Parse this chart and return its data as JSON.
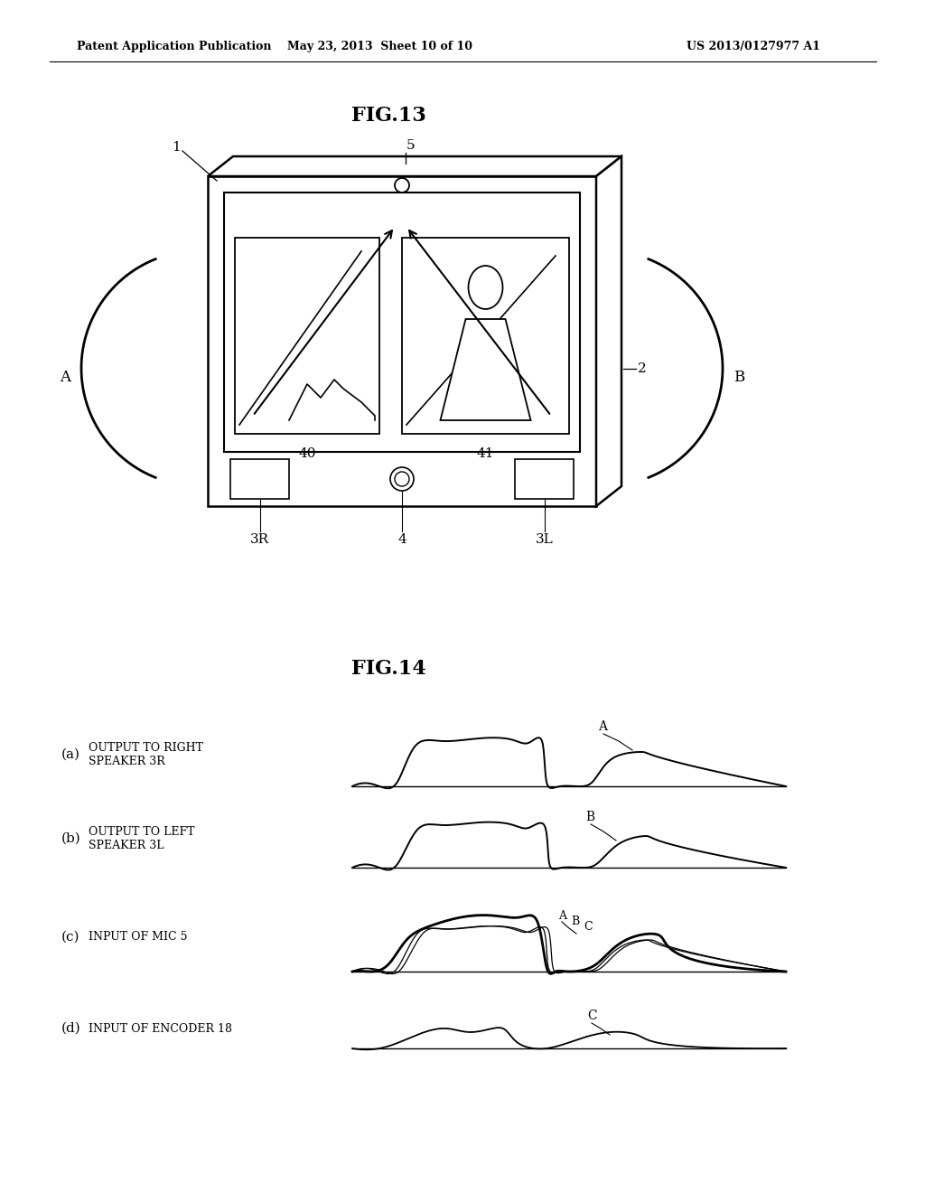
{
  "background_color": "#ffffff",
  "header_left": "Patent Application Publication",
  "header_center": "May 23, 2013  Sheet 10 of 10",
  "header_right": "US 2013/0127977 A1",
  "fig13_title": "FIG.13",
  "fig14_title": "FIG.14",
  "label_1": "1",
  "label_2": "2",
  "label_3R": "3R",
  "label_3L": "3L",
  "label_4": "4",
  "label_5": "5",
  "label_40": "40",
  "label_41": "41",
  "label_A": "A",
  "label_B": "B",
  "label_a": "(a)",
  "label_b": "(b)",
  "label_c": "(c)",
  "label_d": "(d)",
  "label_a_text": "OUTPUT TO RIGHT\nSPEAKER 3R",
  "label_b_text": "OUTPUT TO LEFT\nSPEAKER 3L",
  "label_c_text": "INPUT OF MIC 5",
  "label_d_text": "INPUT OF ENCODER 18"
}
